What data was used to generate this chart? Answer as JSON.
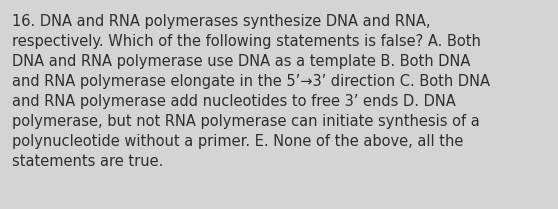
{
  "text": "16. DNA and RNA polymerases synthesize DNA and RNA,\nrespectively. Which of the following statements is false? A. Both\nDNA and RNA polymerase use DNA as a template B. Both DNA\nand RNA polymerase elongate in the 5’→3’ direction C. Both DNA\nand RNA polymerase add nucleotides to free 3’ ends D. DNA\npolymerase, but not RNA polymerase can initiate synthesis of a\npolynucleotide without a primer. E. None of the above, all the\nstatements are true.",
  "background_color": "#d4d4d4",
  "text_color": "#2e2e2e",
  "font_size": 10.5,
  "fig_width": 5.58,
  "fig_height": 2.09,
  "dpi": 100
}
